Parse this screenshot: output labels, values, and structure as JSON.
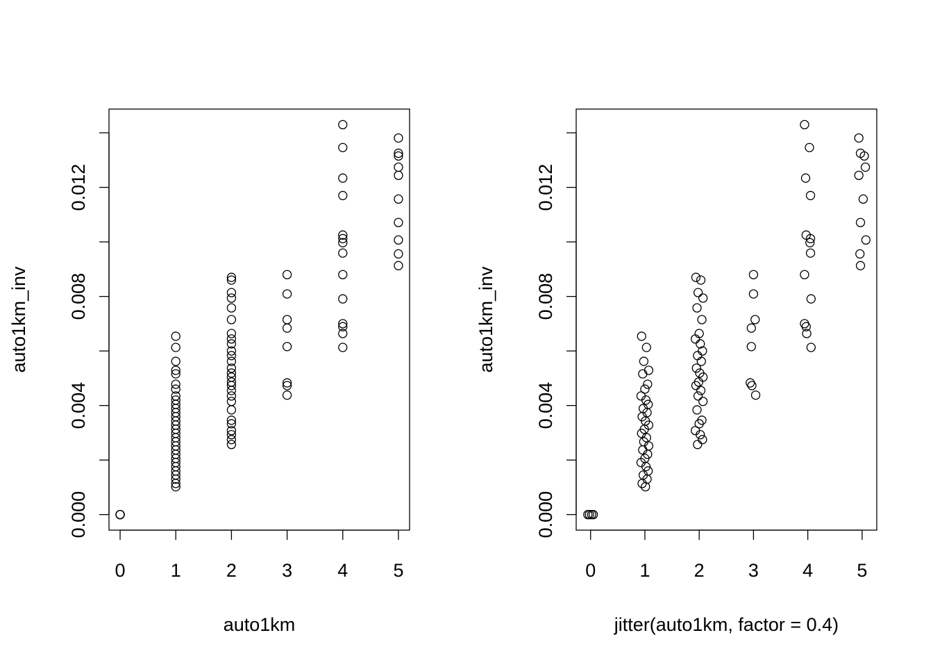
{
  "chart_data": [
    {
      "type": "scatter",
      "xlabel": "auto1km",
      "ylabel": "auto1km_inv",
      "x": [
        0,
        0,
        0,
        0,
        1,
        1,
        1,
        1,
        1,
        1,
        1,
        1,
        1,
        1,
        1,
        1,
        1,
        1,
        1,
        1,
        1,
        1,
        1,
        1,
        1,
        1,
        1,
        1,
        1,
        1,
        1,
        1,
        1,
        1,
        2,
        2,
        2,
        2,
        2,
        2,
        2,
        2,
        2,
        2,
        2,
        2,
        2,
        2,
        2,
        2,
        2,
        2,
        2,
        2,
        2,
        2,
        2,
        2,
        2,
        2,
        2,
        3,
        3,
        3,
        3,
        3,
        3,
        3,
        3,
        4,
        4,
        4,
        4,
        4,
        4,
        4,
        4,
        4,
        4,
        4,
        4,
        4,
        4,
        5,
        5,
        5,
        5,
        5,
        5,
        5,
        5,
        5,
        5
      ],
      "y": [
        0,
        0,
        0,
        0,
        0.00654,
        0.00613,
        0.00562,
        0.00529,
        0.00516,
        0.00478,
        0.0046,
        0.00435,
        0.0042,
        0.00404,
        0.00389,
        0.00374,
        0.00359,
        0.00343,
        0.00328,
        0.00313,
        0.00298,
        0.00282,
        0.00267,
        0.00252,
        0.00237,
        0.00221,
        0.00206,
        0.00191,
        0.00176,
        0.0016,
        0.00145,
        0.0013,
        0.00114,
        0.00102,
        0.0087,
        0.0086,
        0.00814,
        0.00794,
        0.00758,
        0.00715,
        0.00664,
        0.00644,
        0.00626,
        0.006,
        0.00583,
        0.00562,
        0.00537,
        0.00519,
        0.00504,
        0.00486,
        0.00473,
        0.00455,
        0.00435,
        0.00415,
        0.00384,
        0.00346,
        0.00333,
        0.00308,
        0.00293,
        0.00275,
        0.00257,
        0.0088,
        0.00809,
        0.00715,
        0.00684,
        0.00616,
        0.00483,
        0.00473,
        0.00438,
        0.0143,
        0.01346,
        0.01234,
        0.0117,
        0.01025,
        0.01012,
        0.00997,
        0.00959,
        0.0088,
        0.00791,
        0.007,
        0.00689,
        0.00664,
        0.00613,
        0.01381,
        0.01325,
        0.01315,
        0.01274,
        0.01244,
        0.01157,
        0.01071,
        0.01007,
        0.00956,
        0.00913
      ],
      "xlim": [
        -0.2,
        5.2
      ],
      "xticks": [
        0,
        1,
        2,
        3,
        4,
        5
      ],
      "ylim": [
        -0.00057,
        0.01487
      ],
      "yticks": [
        {
          "value": 0,
          "label": "0.000"
        },
        {
          "value": 0.004,
          "label": "0.004"
        },
        {
          "value": 0.008,
          "label": "0.008"
        },
        {
          "value": 0.012,
          "label": "0.012"
        }
      ],
      "yticks_minor": [
        0.002,
        0.006,
        0.01,
        0.014
      ],
      "color": "#000000"
    },
    {
      "type": "scatter",
      "xlabel": "jitter(auto1km, factor = 0.4)",
      "ylabel": "auto1km_inv",
      "x": [
        -0.05,
        -0.02,
        0.02,
        0.05,
        0.94,
        1.03,
        0.98,
        1.07,
        0.96,
        1.05,
        1.0,
        0.93,
        1.02,
        1.06,
        0.97,
        1.04,
        0.95,
        1.01,
        1.07,
        0.99,
        0.94,
        1.03,
        0.98,
        1.07,
        0.96,
        1.05,
        1.0,
        0.93,
        1.02,
        1.06,
        0.97,
        1.04,
        0.95,
        1.01,
        1.94,
        2.03,
        1.98,
        2.07,
        1.96,
        2.05,
        2.0,
        1.93,
        2.02,
        2.06,
        1.97,
        2.04,
        1.95,
        2.01,
        2.07,
        1.99,
        1.94,
        2.03,
        1.98,
        2.07,
        1.96,
        2.05,
        2.0,
        1.93,
        2.02,
        2.06,
        1.97,
        3.0,
        3.0,
        3.03,
        2.96,
        2.96,
        2.94,
        2.97,
        3.04,
        3.94,
        4.03,
        3.96,
        4.05,
        3.97,
        4.05,
        4.04,
        4.05,
        3.94,
        4.06,
        3.94,
        3.97,
        3.98,
        4.06,
        4.94,
        4.97,
        5.04,
        5.06,
        4.94,
        5.02,
        4.97,
        5.07,
        4.96,
        4.97
      ],
      "y": [
        0,
        0,
        0,
        0,
        0.00654,
        0.00613,
        0.00562,
        0.00529,
        0.00516,
        0.00478,
        0.0046,
        0.00435,
        0.0042,
        0.00404,
        0.00389,
        0.00374,
        0.00359,
        0.00343,
        0.00328,
        0.00313,
        0.00298,
        0.00282,
        0.00267,
        0.00252,
        0.00237,
        0.00221,
        0.00206,
        0.00191,
        0.00176,
        0.0016,
        0.00145,
        0.0013,
        0.00114,
        0.00102,
        0.0087,
        0.0086,
        0.00814,
        0.00794,
        0.00758,
        0.00715,
        0.00664,
        0.00644,
        0.00626,
        0.006,
        0.00583,
        0.00562,
        0.00537,
        0.00519,
        0.00504,
        0.00486,
        0.00473,
        0.00455,
        0.00435,
        0.00415,
        0.00384,
        0.00346,
        0.00333,
        0.00308,
        0.00293,
        0.00275,
        0.00257,
        0.0088,
        0.00809,
        0.00715,
        0.00684,
        0.00616,
        0.00483,
        0.00473,
        0.00438,
        0.0143,
        0.01346,
        0.01234,
        0.0117,
        0.01025,
        0.01012,
        0.00997,
        0.00959,
        0.0088,
        0.00791,
        0.007,
        0.00689,
        0.00664,
        0.00613,
        0.01381,
        0.01325,
        0.01315,
        0.01274,
        0.01244,
        0.01157,
        0.01071,
        0.01007,
        0.00956,
        0.00913
      ],
      "xlim": [
        -0.265,
        5.27
      ],
      "xticks": [
        0,
        1,
        2,
        3,
        4,
        5
      ],
      "ylim": [
        -0.00057,
        0.01487
      ],
      "yticks": [
        {
          "value": 0,
          "label": "0.000"
        },
        {
          "value": 0.004,
          "label": "0.004"
        },
        {
          "value": 0.008,
          "label": "0.008"
        },
        {
          "value": 0.012,
          "label": "0.012"
        }
      ],
      "yticks_minor": [
        0.002,
        0.006,
        0.01,
        0.014
      ],
      "color": "#000000"
    }
  ]
}
